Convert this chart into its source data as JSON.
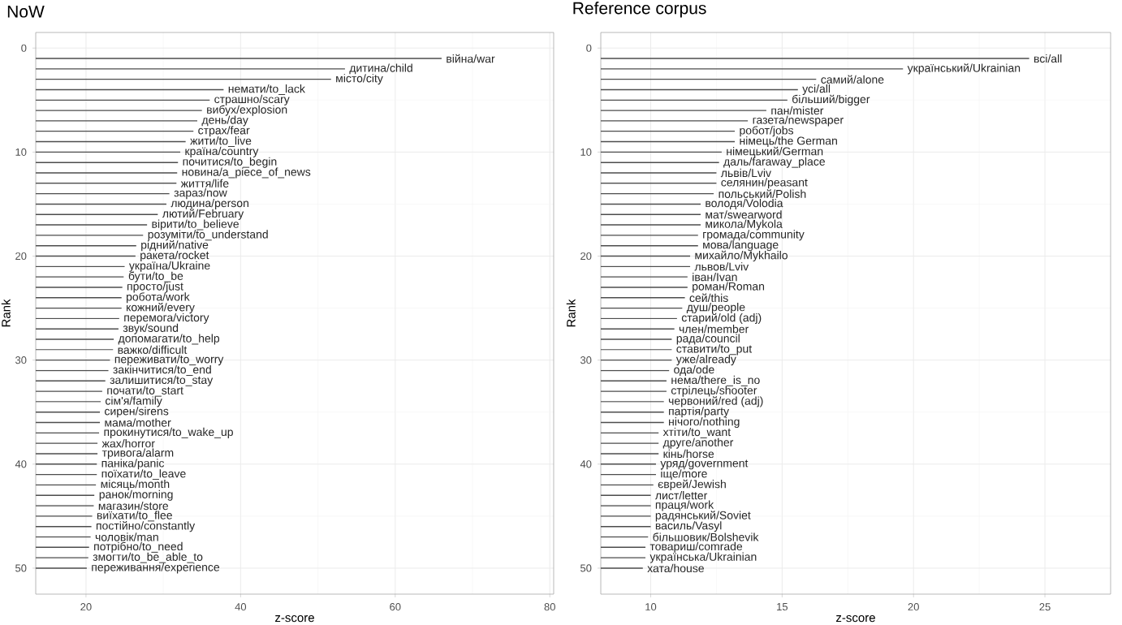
{
  "chart_data": [
    {
      "type": "bar",
      "orientation": "horizontal",
      "title": "NoW",
      "xlabel": "z-score",
      "ylabel": "Rank",
      "color": "#4d4d4d",
      "grid": true,
      "x": [
        1,
        2,
        3,
        4,
        5,
        6,
        7,
        8,
        9,
        10,
        11,
        12,
        13,
        14,
        15,
        16,
        17,
        18,
        19,
        20,
        21,
        22,
        23,
        24,
        25,
        26,
        27,
        28,
        29,
        30,
        31,
        32,
        33,
        34,
        35,
        36,
        37,
        38,
        39,
        40,
        41,
        42,
        43,
        44,
        45,
        46,
        47,
        48,
        49,
        50
      ],
      "values": [
        66.0,
        53.5,
        51.7,
        37.8,
        36.0,
        35.0,
        34.4,
        33.9,
        32.9,
        32.2,
        31.9,
        31.8,
        31.7,
        30.8,
        30.4,
        29.3,
        27.9,
        27.4,
        26.5,
        26.4,
        25.0,
        24.9,
        24.7,
        24.6,
        24.6,
        24.3,
        24.2,
        23.6,
        23.5,
        23.1,
        22.9,
        22.5,
        22.1,
        21.9,
        21.8,
        21.8,
        21.7,
        21.5,
        21.5,
        21.4,
        21.4,
        21.3,
        21.1,
        21.0,
        20.8,
        20.7,
        20.6,
        20.4,
        20.3,
        20.1
      ],
      "xlim": [
        13.5,
        80.5
      ],
      "xticks": [
        20,
        40,
        60,
        80
      ],
      "ylim": [
        52.5,
        -1.5
      ],
      "yticks": [
        0,
        10,
        20,
        30,
        40,
        50
      ],
      "annotations": [
        {
          "text": "війна/war",
          "x": 66.0,
          "y": 1
        },
        {
          "text": "дитина/child",
          "x": 53.5,
          "y": 2
        },
        {
          "text": "місто/city",
          "x": 51.7,
          "y": 3
        },
        {
          "text": "немати/to_lack",
          "x": 37.8,
          "y": 4
        },
        {
          "text": "страшно/scary",
          "x": 36.0,
          "y": 5
        },
        {
          "text": "вибух/explosion",
          "x": 35.0,
          "y": 6
        },
        {
          "text": "день/day",
          "x": 34.4,
          "y": 7
        },
        {
          "text": "страх/fear",
          "x": 33.9,
          "y": 8
        },
        {
          "text": "жити/to_live",
          "x": 32.9,
          "y": 9
        },
        {
          "text": "країна/country",
          "x": 32.2,
          "y": 10
        },
        {
          "text": "почитися/to_begin",
          "x": 31.9,
          "y": 11
        },
        {
          "text": "новина/a_piece_of_news",
          "x": 31.8,
          "y": 12
        },
        {
          "text": "життя/life",
          "x": 31.7,
          "y": 13
        },
        {
          "text": "зараз/now",
          "x": 30.8,
          "y": 14
        },
        {
          "text": "людина/person",
          "x": 30.4,
          "y": 15
        },
        {
          "text": "лютий/February",
          "x": 29.3,
          "y": 16
        },
        {
          "text": "вірити/to_believe",
          "x": 27.9,
          "y": 17
        },
        {
          "text": "розуміти/to_understand",
          "x": 27.4,
          "y": 18
        },
        {
          "text": "рідний/native",
          "x": 26.5,
          "y": 19
        },
        {
          "text": "ракета/rocket",
          "x": 26.4,
          "y": 20
        },
        {
          "text": "україна/Ukraine",
          "x": 25.0,
          "y": 21
        },
        {
          "text": "бути/to_be",
          "x": 24.9,
          "y": 22
        },
        {
          "text": "просто/just",
          "x": 24.7,
          "y": 23
        },
        {
          "text": "робота/work",
          "x": 24.6,
          "y": 24
        },
        {
          "text": "кожний/every",
          "x": 24.6,
          "y": 25
        },
        {
          "text": "перемога/victory",
          "x": 24.3,
          "y": 26
        },
        {
          "text": "звук/sound",
          "x": 24.2,
          "y": 27
        },
        {
          "text": "допомагати/to_help",
          "x": 23.6,
          "y": 28
        },
        {
          "text": "важко/difficult",
          "x": 23.5,
          "y": 29
        },
        {
          "text": "переживати/to_worry",
          "x": 23.1,
          "y": 30
        },
        {
          "text": "закінчитися/to_end",
          "x": 22.9,
          "y": 31
        },
        {
          "text": "залишитися/to_stay",
          "x": 22.5,
          "y": 32
        },
        {
          "text": "почати/to_start",
          "x": 22.1,
          "y": 33
        },
        {
          "text": "сім'я/family",
          "x": 21.9,
          "y": 34
        },
        {
          "text": "сирен/sirens",
          "x": 21.8,
          "y": 35
        },
        {
          "text": "мама/mother",
          "x": 21.8,
          "y": 36
        },
        {
          "text": "прокинутися/to_wake_up",
          "x": 21.7,
          "y": 37
        },
        {
          "text": "жах/horror",
          "x": 21.5,
          "y": 38
        },
        {
          "text": "тривога/alarm",
          "x": 21.5,
          "y": 39
        },
        {
          "text": "паніка/panic",
          "x": 21.4,
          "y": 40
        },
        {
          "text": "поїхати/to_leave",
          "x": 21.4,
          "y": 41
        },
        {
          "text": "місяць/month",
          "x": 21.3,
          "y": 42
        },
        {
          "text": "ранок/morning",
          "x": 21.1,
          "y": 43
        },
        {
          "text": "магазин/store",
          "x": 21.0,
          "y": 44
        },
        {
          "text": "виїхати/to_flee",
          "x": 20.8,
          "y": 45
        },
        {
          "text": "постійно/constantly",
          "x": 20.7,
          "y": 46
        },
        {
          "text": "чоловік/man",
          "x": 20.6,
          "y": 47
        },
        {
          "text": "потрібно/to_need",
          "x": 20.4,
          "y": 48
        },
        {
          "text": "змогти/to_be_able_to",
          "x": 20.3,
          "y": 49
        },
        {
          "text": "переживання/experience",
          "x": 20.1,
          "y": 50
        }
      ]
    },
    {
      "type": "bar",
      "orientation": "horizontal",
      "title": "Reference corpus",
      "xlabel": "z-score",
      "ylabel": "Rank",
      "color": "#4d4d4d",
      "grid": true,
      "x": [
        1,
        2,
        3,
        4,
        5,
        6,
        7,
        8,
        9,
        10,
        11,
        12,
        13,
        14,
        15,
        16,
        17,
        18,
        19,
        20,
        21,
        22,
        23,
        24,
        25,
        26,
        27,
        28,
        29,
        30,
        31,
        32,
        33,
        34,
        35,
        36,
        37,
        38,
        39,
        40,
        41,
        42,
        43,
        44,
        45,
        46,
        47,
        48,
        49,
        50
      ],
      "values": [
        24.4,
        19.6,
        16.3,
        15.6,
        15.2,
        14.4,
        13.7,
        13.2,
        13.2,
        12.7,
        12.6,
        12.5,
        12.5,
        12.4,
        11.9,
        11.9,
        11.9,
        11.8,
        11.8,
        11.5,
        11.5,
        11.4,
        11.4,
        11.3,
        11.2,
        11.0,
        10.9,
        10.8,
        10.8,
        10.8,
        10.7,
        10.6,
        10.6,
        10.5,
        10.5,
        10.5,
        10.3,
        10.3,
        10.3,
        10.2,
        10.2,
        10.1,
        10.0,
        10.0,
        10.0,
        10.0,
        9.9,
        9.8,
        9.8,
        9.7
      ],
      "xlim": [
        8.1,
        27.5
      ],
      "xticks": [
        10,
        15,
        20,
        25
      ],
      "ylim": [
        52.5,
        -1.5
      ],
      "yticks": [
        0,
        10,
        20,
        30,
        40,
        50
      ],
      "annotations": [
        {
          "text": "всі/all",
          "x": 24.4,
          "y": 1
        },
        {
          "text": "український/Ukrainian",
          "x": 19.6,
          "y": 2
        },
        {
          "text": "самий/alone",
          "x": 16.3,
          "y": 3
        },
        {
          "text": "усі/all",
          "x": 15.6,
          "y": 4
        },
        {
          "text": "більший/bigger",
          "x": 15.2,
          "y": 5
        },
        {
          "text": "пан/mister",
          "x": 14.4,
          "y": 6
        },
        {
          "text": "газета/newspaper",
          "x": 13.7,
          "y": 7
        },
        {
          "text": "робот/jobs",
          "x": 13.2,
          "y": 8
        },
        {
          "text": "німець/the German",
          "x": 13.2,
          "y": 9
        },
        {
          "text": "німецький/German",
          "x": 12.7,
          "y": 10
        },
        {
          "text": "даль/faraway_place",
          "x": 12.6,
          "y": 11
        },
        {
          "text": "львів/Lviv",
          "x": 12.5,
          "y": 12
        },
        {
          "text": "селянин/peasant",
          "x": 12.5,
          "y": 13
        },
        {
          "text": "польський/Polish",
          "x": 12.4,
          "y": 14
        },
        {
          "text": "володя/Volodia",
          "x": 11.9,
          "y": 15
        },
        {
          "text": "мат/swearword",
          "x": 11.9,
          "y": 16
        },
        {
          "text": "микола/Mykola",
          "x": 11.9,
          "y": 17
        },
        {
          "text": "громада/community",
          "x": 11.8,
          "y": 18
        },
        {
          "text": "мова/language",
          "x": 11.8,
          "y": 19
        },
        {
          "text": "михайло/Mykhailo",
          "x": 11.5,
          "y": 20
        },
        {
          "text": "львов/Lviv",
          "x": 11.5,
          "y": 21
        },
        {
          "text": "іван/Ivan",
          "x": 11.4,
          "y": 22
        },
        {
          "text": "роман/Roman",
          "x": 11.4,
          "y": 23
        },
        {
          "text": "сей/this",
          "x": 11.3,
          "y": 24
        },
        {
          "text": "душ/people",
          "x": 11.2,
          "y": 25
        },
        {
          "text": "старий/old (adj)",
          "x": 11.0,
          "y": 26
        },
        {
          "text": "член/member",
          "x": 10.9,
          "y": 27
        },
        {
          "text": "рада/council",
          "x": 10.8,
          "y": 28
        },
        {
          "text": "ставити/to_put",
          "x": 10.8,
          "y": 29
        },
        {
          "text": "уже/already",
          "x": 10.8,
          "y": 30
        },
        {
          "text": "ода/ode",
          "x": 10.7,
          "y": 31
        },
        {
          "text": "нема/there_is_no",
          "x": 10.6,
          "y": 32
        },
        {
          "text": "стрілець/shooter",
          "x": 10.6,
          "y": 33
        },
        {
          "text": "червоний/red (adj)",
          "x": 10.5,
          "y": 34
        },
        {
          "text": "партія/party",
          "x": 10.5,
          "y": 35
        },
        {
          "text": "нічого/nothing",
          "x": 10.5,
          "y": 36
        },
        {
          "text": "хтіти/to_want",
          "x": 10.3,
          "y": 37
        },
        {
          "text": "друге/another",
          "x": 10.3,
          "y": 38
        },
        {
          "text": "кінь/horse",
          "x": 10.3,
          "y": 39
        },
        {
          "text": "уряд/government",
          "x": 10.2,
          "y": 40
        },
        {
          "text": "іще/more",
          "x": 10.2,
          "y": 41
        },
        {
          "text": "єврей/Jewish",
          "x": 10.1,
          "y": 42
        },
        {
          "text": "лист/letter",
          "x": 10.0,
          "y": 43
        },
        {
          "text": "праця/work",
          "x": 10.0,
          "y": 44
        },
        {
          "text": "радянський/Soviet",
          "x": 10.0,
          "y": 45
        },
        {
          "text": "василь/Vasyl",
          "x": 10.0,
          "y": 46
        },
        {
          "text": "більшовик/Bolshevik",
          "x": 9.9,
          "y": 47
        },
        {
          "text": "товариш/comrade",
          "x": 9.8,
          "y": 48
        },
        {
          "text": "українська/Ukrainian",
          "x": 9.8,
          "y": 49
        },
        {
          "text": "хата/house",
          "x": 9.7,
          "y": 50
        }
      ]
    }
  ]
}
